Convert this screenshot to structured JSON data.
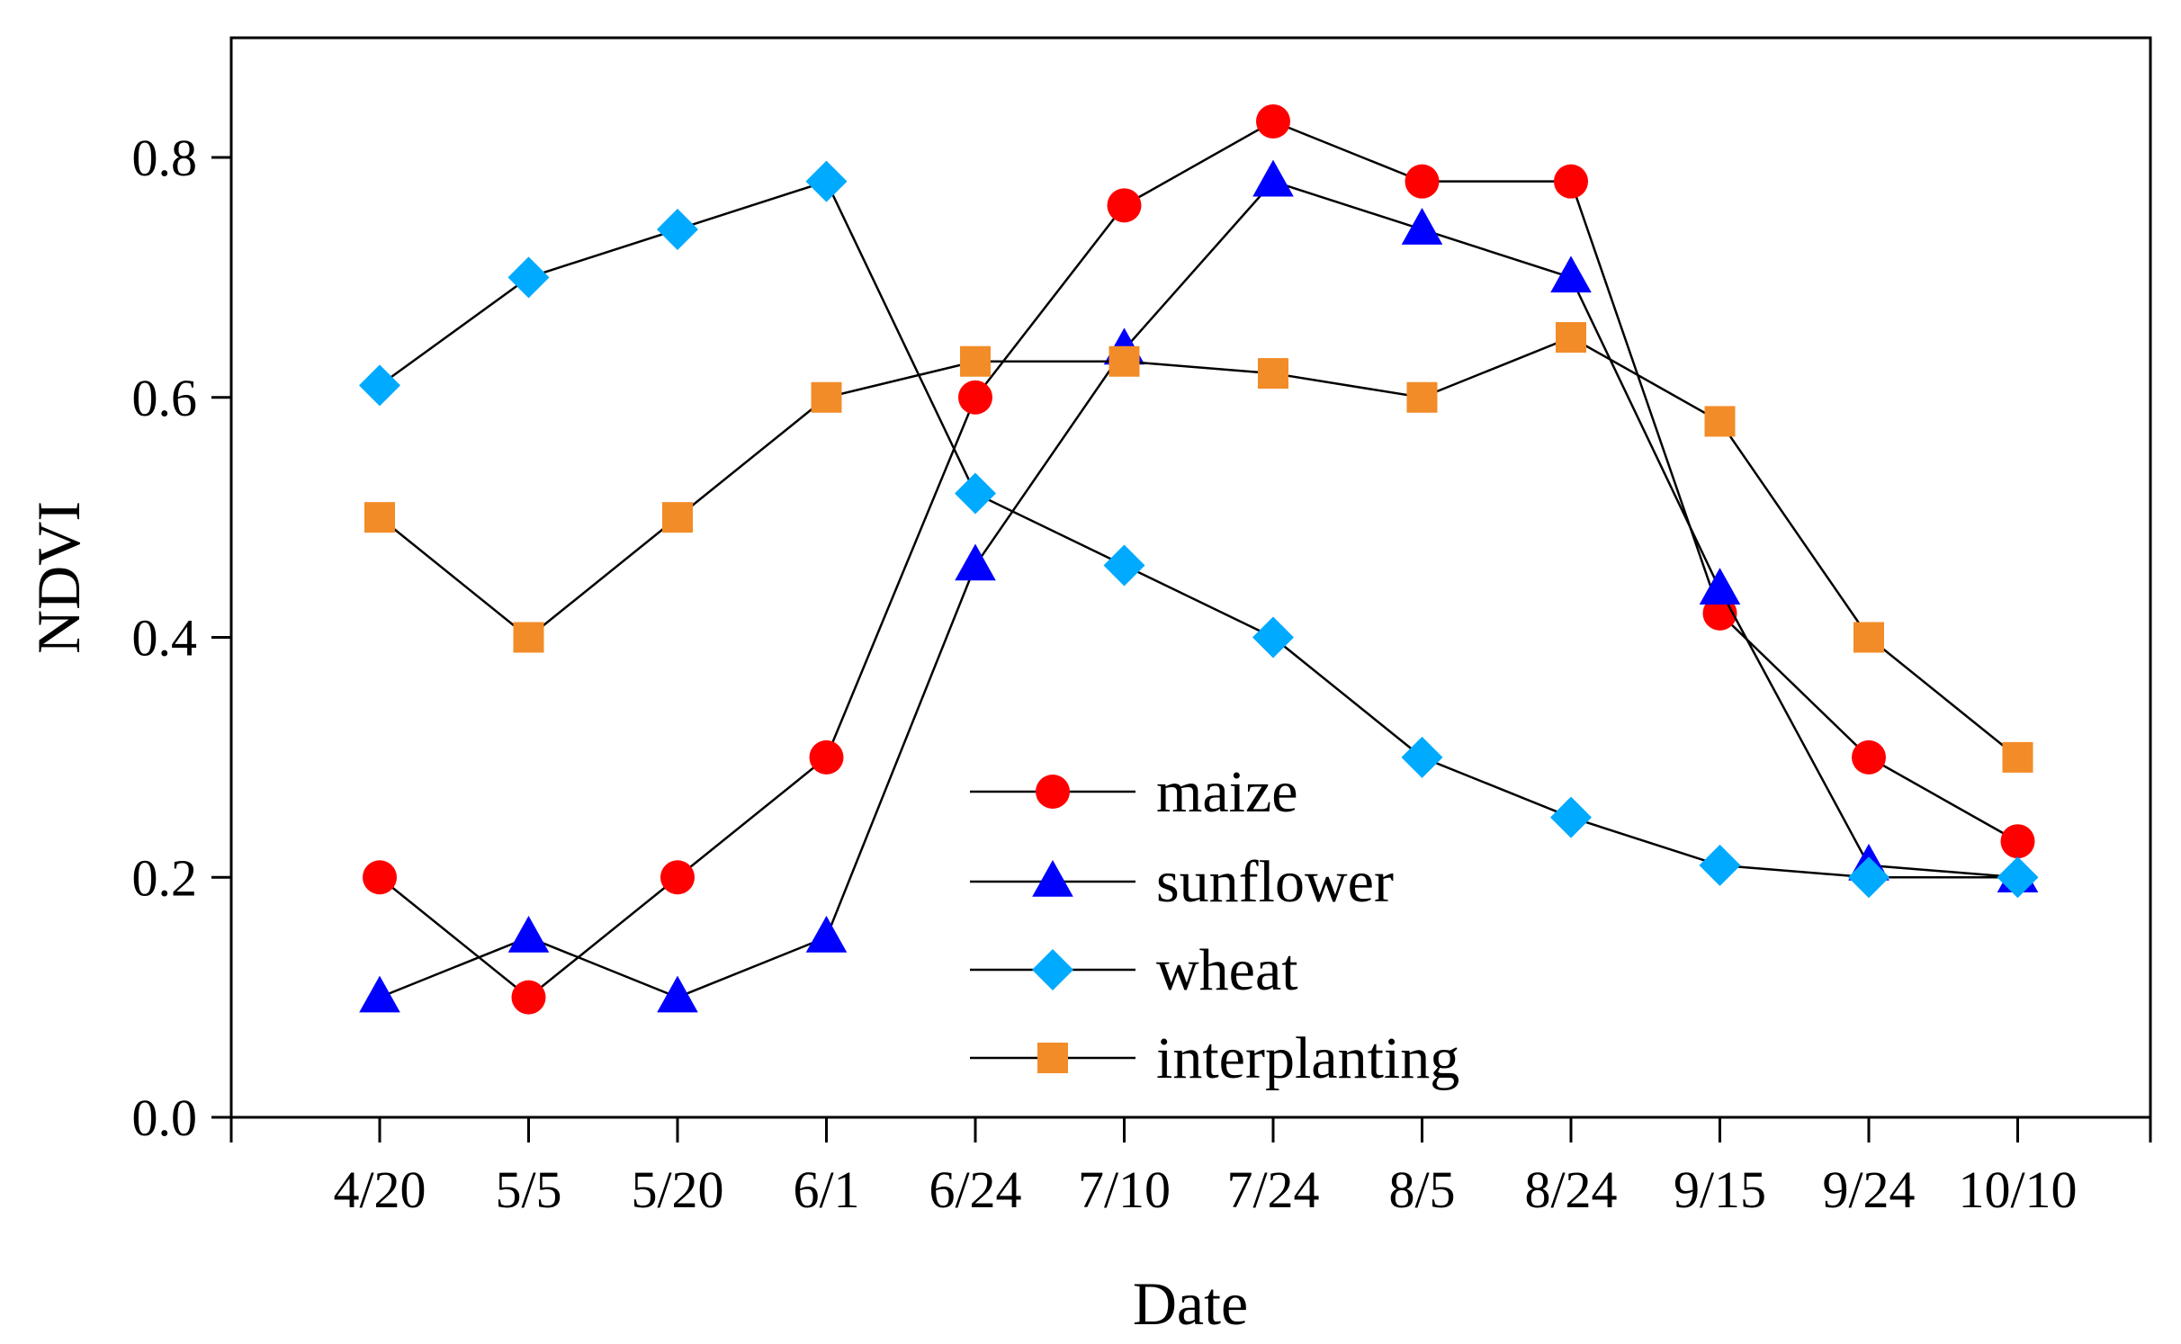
{
  "chart_data": {
    "type": "line",
    "xlabel": "Date",
    "ylabel": "NDVI",
    "categories": [
      "4/20",
      "5/5",
      "5/20",
      "6/1",
      "6/24",
      "7/10",
      "7/24",
      "8/5",
      "8/24",
      "9/15",
      "9/24",
      "10/10"
    ],
    "ylim": [
      0,
      0.9
    ],
    "yticks": [
      "0.0",
      "0.2",
      "0.4",
      "0.6",
      "0.8"
    ],
    "grid": false,
    "legend_position": "bottom-center",
    "series": [
      {
        "name": "maize",
        "marker": "circle",
        "color": "#ff0000",
        "values": [
          0.2,
          0.1,
          0.2,
          0.3,
          0.6,
          0.76,
          0.83,
          0.78,
          0.78,
          0.42,
          0.3,
          0.23
        ]
      },
      {
        "name": "sunflower",
        "marker": "triangle",
        "color": "#0000ff",
        "values": [
          0.1,
          0.15,
          0.1,
          0.15,
          0.46,
          0.64,
          0.78,
          0.74,
          0.7,
          0.44,
          0.21,
          0.2
        ]
      },
      {
        "name": "wheat",
        "marker": "diamond",
        "color": "#00aaff",
        "values": [
          0.61,
          0.7,
          0.74,
          0.78,
          0.52,
          0.46,
          0.4,
          0.3,
          0.25,
          0.21,
          0.2,
          0.2
        ]
      },
      {
        "name": "interplanting",
        "marker": "square",
        "color": "#f28c28",
        "values": [
          0.5,
          0.4,
          0.5,
          0.6,
          0.63,
          0.63,
          0.62,
          0.6,
          0.65,
          0.58,
          0.4,
          0.3
        ]
      }
    ]
  }
}
